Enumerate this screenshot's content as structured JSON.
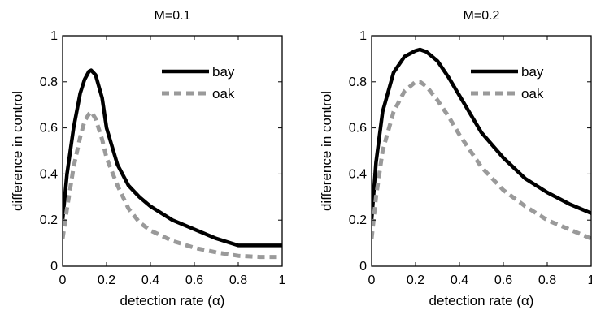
{
  "colors": {
    "bay": "#000000",
    "oak": "#9a9a9a",
    "axes": "#000000"
  },
  "chart_data": [
    {
      "type": "line",
      "title": "M=0.1",
      "xlabel": "detection rate (α)",
      "ylabel": "difference in control",
      "xlim": [
        0,
        1
      ],
      "ylim": [
        0,
        1
      ],
      "xticks": [
        0,
        0.2,
        0.4,
        0.6,
        0.8,
        1
      ],
      "xtick_labels": [
        "0",
        "0.2",
        "0.4",
        "0.6",
        "0.8",
        "1"
      ],
      "yticks": [
        0,
        0.2,
        0.4,
        0.6,
        0.8,
        1
      ],
      "ytick_labels": [
        "0",
        "0.2",
        "0.4",
        "0.6",
        "0.8",
        "1"
      ],
      "grid": false,
      "legend_position": "top-right",
      "series": [
        {
          "name": "bay",
          "style": "solid",
          "x": [
            0,
            0.02,
            0.05,
            0.08,
            0.1,
            0.12,
            0.13,
            0.15,
            0.18,
            0.2,
            0.25,
            0.3,
            0.35,
            0.4,
            0.5,
            0.6,
            0.7,
            0.8,
            0.9,
            1.0
          ],
          "y": [
            0.2,
            0.4,
            0.6,
            0.75,
            0.81,
            0.845,
            0.85,
            0.83,
            0.73,
            0.6,
            0.44,
            0.35,
            0.3,
            0.26,
            0.2,
            0.16,
            0.12,
            0.09,
            0.09,
            0.09
          ]
        },
        {
          "name": "oak",
          "style": "dashed",
          "x": [
            0,
            0.02,
            0.05,
            0.08,
            0.1,
            0.12,
            0.13,
            0.15,
            0.18,
            0.2,
            0.25,
            0.3,
            0.35,
            0.4,
            0.5,
            0.6,
            0.7,
            0.8,
            0.9,
            1.0
          ],
          "y": [
            0.12,
            0.25,
            0.43,
            0.56,
            0.63,
            0.66,
            0.67,
            0.64,
            0.55,
            0.47,
            0.35,
            0.25,
            0.19,
            0.155,
            0.11,
            0.08,
            0.06,
            0.045,
            0.04,
            0.04
          ]
        }
      ]
    },
    {
      "type": "line",
      "title": "M=0.2",
      "xlabel": "detection rate (α)",
      "ylabel": "difference in control",
      "xlim": [
        0,
        1
      ],
      "ylim": [
        0,
        1
      ],
      "xticks": [
        0,
        0.2,
        0.4,
        0.6,
        0.8,
        1
      ],
      "xtick_labels": [
        "0",
        "0.2",
        "0.4",
        "0.6",
        "0.8",
        "1"
      ],
      "yticks": [
        0,
        0.2,
        0.4,
        0.6,
        0.8,
        1
      ],
      "ytick_labels": [
        "0",
        "0.2",
        "0.4",
        "0.6",
        "0.8",
        "1"
      ],
      "grid": false,
      "legend_position": "top-right",
      "series": [
        {
          "name": "bay",
          "style": "solid",
          "x": [
            0,
            0.02,
            0.05,
            0.1,
            0.15,
            0.2,
            0.22,
            0.25,
            0.3,
            0.35,
            0.4,
            0.5,
            0.6,
            0.7,
            0.8,
            0.9,
            1.0
          ],
          "y": [
            0.2,
            0.45,
            0.67,
            0.84,
            0.91,
            0.935,
            0.94,
            0.93,
            0.89,
            0.82,
            0.74,
            0.58,
            0.47,
            0.38,
            0.32,
            0.27,
            0.23
          ]
        },
        {
          "name": "oak",
          "style": "dashed",
          "x": [
            0,
            0.02,
            0.05,
            0.1,
            0.15,
            0.2,
            0.22,
            0.25,
            0.3,
            0.35,
            0.4,
            0.5,
            0.6,
            0.7,
            0.8,
            0.9,
            1.0
          ],
          "y": [
            0.12,
            0.3,
            0.5,
            0.67,
            0.76,
            0.8,
            0.8,
            0.78,
            0.72,
            0.65,
            0.57,
            0.43,
            0.33,
            0.26,
            0.2,
            0.16,
            0.12
          ]
        }
      ]
    }
  ]
}
